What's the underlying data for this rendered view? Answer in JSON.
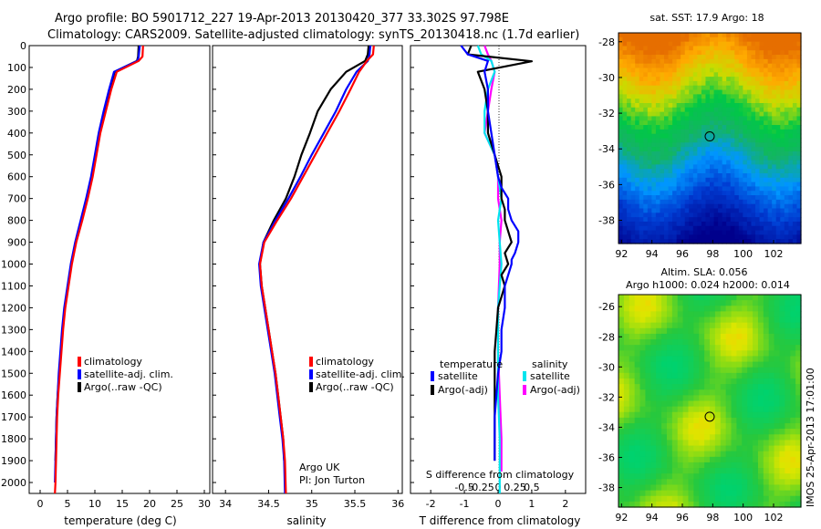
{
  "header": {
    "line1": "Argo profile: BO 5901712_227 19-Apr-2013 20130420_377 33.302S 97.798E",
    "line2": "Climatology: CARS2009. Satellite-adjusted climatology: synTS_20130418.nc (1.7d earlier)"
  },
  "colors": {
    "climatology": "#ff0000",
    "satellite": "#0000ff",
    "argo": "#000000",
    "sat_salinity": "#00e5ee",
    "argo_salinity": "#ff00ff"
  },
  "footer_stamp": "IMOS 25-Apr-2013 17:01:00",
  "chart_data": [
    {
      "type": "line",
      "xlabel": "temperature (deg C)",
      "ylim": [
        2050,
        0
      ],
      "y_ticks": [
        0,
        100,
        200,
        300,
        400,
        500,
        600,
        700,
        800,
        900,
        1000,
        1100,
        1200,
        1300,
        1400,
        1500,
        1600,
        1700,
        1800,
        1900,
        2000
      ],
      "x_ticks": [
        0,
        5,
        10,
        15,
        20,
        25,
        30
      ],
      "xlim": [
        -2,
        31
      ],
      "legend": [
        "climatology",
        "satellite-adj. clim.",
        "Argo(..raw -QC)"
      ],
      "series": [
        {
          "name": "climatology",
          "color": "#ff0000",
          "x": [
            18.8,
            18.7,
            18.0,
            14.0,
            13.0,
            12.0,
            11.0,
            10.3,
            9.6,
            8.7,
            7.7,
            6.6,
            5.8,
            5.2,
            4.6,
            4.2,
            3.9,
            3.6,
            3.3,
            3.1,
            3.0,
            2.9,
            2.8,
            2.7
          ],
          "y": [
            0,
            50,
            70,
            120,
            200,
            300,
            400,
            500,
            600,
            700,
            800,
            900,
            1000,
            1100,
            1200,
            1300,
            1400,
            1500,
            1600,
            1700,
            1800,
            1900,
            2000,
            2050
          ]
        },
        {
          "name": "satellite-adj. clim.",
          "color": "#0000ff",
          "x": [
            18.2,
            18.0,
            17.8,
            13.5,
            12.6,
            11.6,
            10.7,
            10.0,
            9.3,
            8.4,
            7.4,
            6.4,
            5.6,
            5.0,
            4.4,
            4.0,
            3.7,
            3.4,
            3.2,
            3.0,
            2.9,
            2.8,
            2.7
          ],
          "y": [
            0,
            50,
            70,
            120,
            200,
            300,
            400,
            500,
            600,
            700,
            800,
            900,
            1000,
            1100,
            1200,
            1300,
            1400,
            1500,
            1600,
            1700,
            1800,
            1900,
            2000
          ]
        },
        {
          "name": "Argo(..raw -QC)",
          "color": "#000000",
          "x": [
            18.0,
            17.9,
            17.7,
            13.6,
            12.7,
            11.7,
            10.8,
            10.1,
            9.4,
            8.5,
            7.5,
            6.5,
            5.7,
            5.1,
            4.5,
            4.1,
            3.8,
            3.5,
            3.2,
            3.0,
            2.9,
            2.8
          ],
          "y": [
            0,
            50,
            70,
            120,
            200,
            300,
            400,
            500,
            600,
            700,
            800,
            900,
            1000,
            1100,
            1200,
            1300,
            1400,
            1500,
            1600,
            1700,
            1800,
            1900
          ]
        }
      ]
    },
    {
      "type": "line",
      "xlabel": "salinity",
      "ylim": [
        2050,
        0
      ],
      "x_ticks": [
        34,
        34.5,
        35,
        35.5,
        36
      ],
      "xlim": [
        33.85,
        36.05
      ],
      "legend": [
        "climatology",
        "satellite-adj. clim.",
        "Argo(..raw -QC)"
      ],
      "annotation": [
        "Argo UK",
        "PI: Jon Turton"
      ],
      "series": [
        {
          "name": "climatology",
          "color": "#ff0000",
          "x": [
            35.72,
            35.71,
            35.64,
            35.55,
            35.45,
            35.32,
            35.18,
            35.04,
            34.9,
            34.76,
            34.6,
            34.45,
            34.4,
            34.42,
            34.46,
            34.5,
            34.54,
            34.58,
            34.61,
            34.64,
            34.67,
            34.69,
            34.7
          ],
          "y": [
            0,
            40,
            70,
            120,
            200,
            300,
            400,
            500,
            600,
            700,
            800,
            900,
            1000,
            1100,
            1200,
            1300,
            1400,
            1500,
            1600,
            1700,
            1800,
            1900,
            2050
          ]
        },
        {
          "name": "satellite-adj. clim.",
          "color": "#0000ff",
          "x": [
            35.68,
            35.67,
            35.65,
            35.52,
            35.4,
            35.28,
            35.14,
            35.0,
            34.87,
            34.73,
            34.58,
            34.44,
            34.39,
            34.41,
            34.45,
            34.49,
            34.53,
            34.57,
            34.6,
            34.63,
            34.66,
            34.68,
            34.69
          ],
          "y": [
            0,
            40,
            70,
            120,
            200,
            300,
            400,
            500,
            600,
            700,
            800,
            900,
            1000,
            1100,
            1200,
            1300,
            1400,
            1500,
            1600,
            1700,
            1800,
            1900,
            2050
          ]
        },
        {
          "name": "Argo(..raw -QC)",
          "color": "#000000",
          "x": [
            35.66,
            35.65,
            35.62,
            35.4,
            35.22,
            35.07,
            34.98,
            34.88,
            34.8,
            34.7,
            34.56,
            34.44,
            34.4,
            34.42,
            34.46,
            34.5,
            34.54,
            34.58,
            34.61,
            34.64,
            34.67,
            34.68
          ],
          "y": [
            0,
            40,
            70,
            120,
            200,
            300,
            400,
            500,
            600,
            700,
            800,
            900,
            1000,
            1100,
            1200,
            1300,
            1400,
            1500,
            1600,
            1700,
            1800,
            1900
          ]
        }
      ]
    },
    {
      "type": "line",
      "xlabel": "T difference from climatology",
      "xlabel_top": "S difference from climatology",
      "ylim": [
        2050,
        0
      ],
      "x_ticks": [
        -2,
        -1,
        0,
        1,
        2
      ],
      "x_tick_labels": [
        "-2",
        "-1",
        "0",
        "1",
        "2"
      ],
      "s_ticks": [
        -0.5,
        -0.25,
        0,
        0.25,
        0.5
      ],
      "s_tick_labels": [
        "-0.5",
        "-0.25",
        "0",
        "0.25",
        "0.5"
      ],
      "xlim": [
        -2.6,
        2.6
      ],
      "legend_temperature_title": "temperature",
      "legend_salinity_title": "salinity",
      "legend": [
        "satellite",
        "Argo(-adj)",
        "satellite",
        "Argo(-adj)"
      ],
      "series": [
        {
          "name": "satellite",
          "color": "#0000ff",
          "x": [
            -1.1,
            -0.9,
            -0.3,
            -0.4,
            -0.3,
            -0.3,
            -0.2,
            -0.1,
            0.0,
            0.1,
            0.3,
            0.3,
            0.4,
            0.6,
            0.6,
            0.5,
            0.4,
            0.4,
            0.3,
            0.2,
            0.2,
            0.1,
            0.1,
            0.0,
            -0.05,
            -0.1,
            -0.1,
            -0.1
          ],
          "y": [
            0,
            40,
            70,
            120,
            200,
            300,
            400,
            500,
            600,
            650,
            700,
            750,
            800,
            850,
            900,
            950,
            980,
            1000,
            1050,
            1100,
            1200,
            1300,
            1400,
            1500,
            1600,
            1700,
            1800,
            1900
          ]
        },
        {
          "name": "Argo(-adj)",
          "color": "#000000",
          "x": [
            -0.8,
            -0.9,
            1.0,
            -0.6,
            -0.4,
            -0.3,
            -0.3,
            -0.1,
            0.1,
            0.1,
            0.2,
            0.2,
            0.3,
            0.4,
            0.2,
            0.3,
            0.1,
            0.2,
            0.0,
            -0.05,
            -0.1,
            -0.1,
            -0.1,
            -0.1
          ],
          "y": [
            0,
            40,
            72,
            120,
            200,
            300,
            400,
            500,
            600,
            700,
            750,
            800,
            850,
            900,
            950,
            1000,
            1050,
            1100,
            1200,
            1300,
            1400,
            1500,
            1700,
            1900
          ]
        },
        {
          "name": "satellite",
          "color": "#00e5ee",
          "x": [
            -0.6,
            -0.5,
            -0.2,
            -0.1,
            -0.3,
            -0.4,
            -0.4,
            -0.1,
            0.0,
            0.1,
            0.0,
            0.05,
            0.1,
            0.05,
            0.0,
            0.0,
            0.0,
            0.0,
            0.05,
            0.05,
            0.05
          ],
          "y": [
            0,
            40,
            70,
            120,
            200,
            300,
            400,
            500,
            600,
            700,
            800,
            900,
            1000,
            1100,
            1200,
            1300,
            1400,
            1600,
            1800,
            1950,
            2050
          ]
        },
        {
          "name": "Argo(-adj)",
          "color": "#ff00ff",
          "x": [
            -0.4,
            -0.3,
            -0.2,
            -0.1,
            -0.2,
            -0.3,
            -0.4,
            -0.1,
            0.0,
            0.0,
            0.1,
            0.05,
            0.05,
            0.0,
            0.0,
            0.05,
            0.1,
            0.1
          ],
          "y": [
            0,
            40,
            70,
            120,
            200,
            300,
            400,
            500,
            600,
            700,
            800,
            900,
            1000,
            1200,
            1400,
            1600,
            1800,
            1950
          ]
        }
      ]
    },
    {
      "type": "heatmap",
      "title": "sat. SST: 17.9 Argo: 18",
      "x_ticks": [
        92,
        94,
        96,
        98,
        100,
        102
      ],
      "y_ticks": [
        -28,
        -30,
        -32,
        -34,
        -36,
        -38
      ],
      "xlim": [
        91.8,
        103.8
      ],
      "ylim": [
        -39.3,
        -27.5
      ],
      "marker": {
        "lon": 97.8,
        "lat": -33.3
      }
    },
    {
      "type": "heatmap",
      "title": "Altim. SLA: 0.056",
      "subtitle": "Argo h1000: 0.024 h2000: 0.014",
      "x_ticks": [
        92,
        94,
        96,
        98,
        100,
        102
      ],
      "y_ticks": [
        -26,
        -28,
        -30,
        -32,
        -34,
        -36,
        -38
      ],
      "xlim": [
        91.8,
        103.8
      ],
      "ylim": [
        -39.3,
        -25.2
      ],
      "marker": {
        "lon": 97.8,
        "lat": -33.3
      }
    }
  ]
}
